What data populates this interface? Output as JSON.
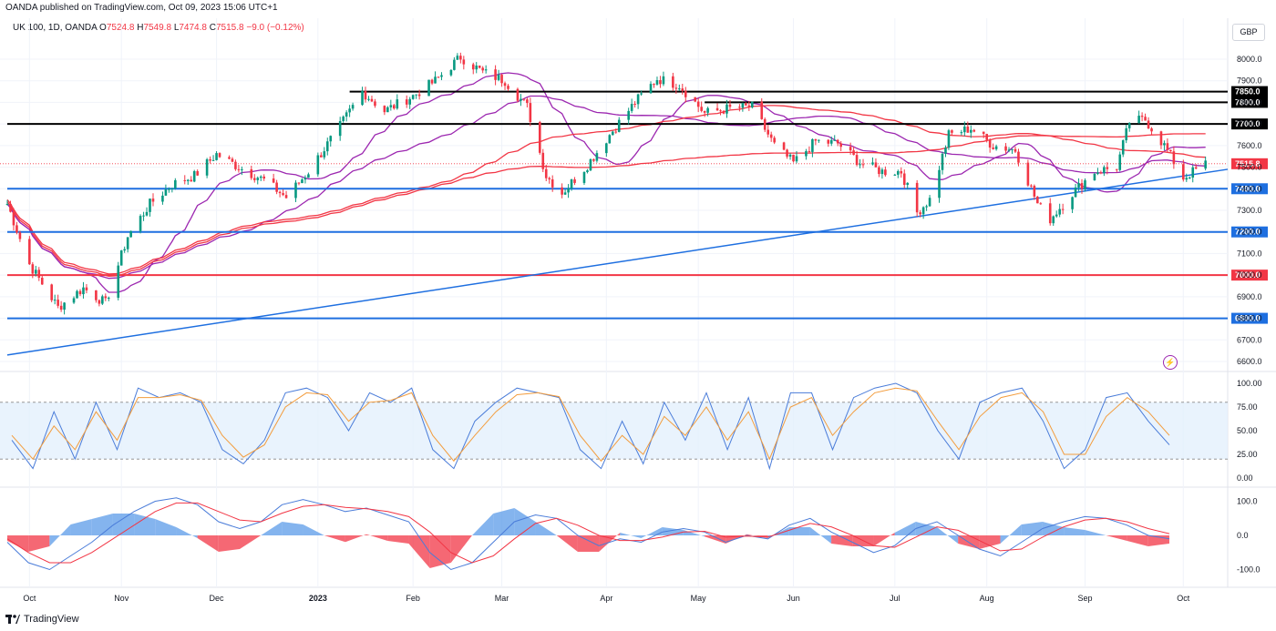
{
  "header": {
    "published": "OANDA published on TradingView.com, Oct 09, 2023 15:06 UTC+1",
    "symbol": "UK 100, 1D, OANDA",
    "o_label": "O",
    "o": "7524.8",
    "h_label": "H",
    "h": "7549.8",
    "l_label": "L",
    "l": "7474.8",
    "c_label": "C",
    "c": "7515.8",
    "change": "−9.0 (−0.12%)",
    "currency": "GBP"
  },
  "footer": {
    "brand": "TradingView"
  },
  "colors": {
    "up": "#089981",
    "down": "#f23645",
    "blue_level": "#1e6fe0",
    "red_level": "#f23645",
    "black_level": "#000000",
    "ma_purple": "#9c27b0",
    "ma_red": "#f23645",
    "stoch_k": "#4a7cd9",
    "stoch_d": "#f39c3c",
    "macd_pos": "#5b9be8",
    "macd_neg": "#f23645"
  },
  "chart_data": [
    {
      "type": "candlestick",
      "title": "UK 100, 1D, OANDA",
      "price_axis": {
        "ticks": [
          "8000.0",
          "7900.0",
          "7800.0",
          "7700.0",
          "7600.0",
          "7500.0",
          "7400.0",
          "7300.0",
          "7200.0",
          "7100.0",
          "7000.0",
          "6900.0",
          "6800.0",
          "6700.0",
          "6600.0"
        ],
        "range": [
          6550,
          8060
        ]
      },
      "time_axis": [
        "Oct",
        "Nov",
        "Dec",
        "2023",
        "Feb",
        "Mar",
        "Apr",
        "May",
        "Jun",
        "Jul",
        "Aug",
        "Sep",
        "Oct"
      ],
      "last_price": "7515.8",
      "horizontal_levels": [
        {
          "label": "7850.0",
          "value": 7850,
          "color": "black",
          "start": "2023-01-12"
        },
        {
          "label": "7800.0",
          "value": 7800,
          "color": "black",
          "start": "2023-05-04"
        },
        {
          "label": "7700.0",
          "value": 7700,
          "color": "black",
          "start": "2022-09-26"
        },
        {
          "label": "7400.0",
          "value": 7400,
          "color": "blue",
          "start": "2022-09-26"
        },
        {
          "label": "7200.0",
          "value": 7200,
          "color": "blue",
          "start": "2022-09-26"
        },
        {
          "label": "7000.0",
          "value": 7000,
          "color": "red",
          "start": "2022-09-26"
        },
        {
          "label": "6800.0",
          "value": 6800,
          "color": "blue",
          "start": "2022-09-26"
        }
      ],
      "trendline": {
        "from": {
          "date": "2022-09-26",
          "price": 6630
        },
        "to": {
          "date": "2023-10-16",
          "price": 7490
        }
      },
      "close_path": [
        [
          "2022-09-26",
          7330
        ],
        [
          "2022-10-03",
          7050
        ],
        [
          "2022-10-12",
          6850
        ],
        [
          "2022-10-20",
          6940
        ],
        [
          "2022-10-27",
          6870
        ],
        [
          "2022-11-03",
          7180
        ],
        [
          "2022-11-10",
          7330
        ],
        [
          "2022-11-17",
          7420
        ],
        [
          "2022-11-24",
          7460
        ],
        [
          "2022-12-01",
          7560
        ],
        [
          "2022-12-08",
          7500
        ],
        [
          "2022-12-16",
          7440
        ],
        [
          "2022-12-23",
          7360
        ],
        [
          "2022-12-30",
          7480
        ],
        [
          "2023-01-09",
          7690
        ],
        [
          "2023-01-16",
          7850
        ],
        [
          "2023-01-23",
          7760
        ],
        [
          "2023-02-01",
          7830
        ],
        [
          "2023-02-08",
          7900
        ],
        [
          "2023-02-16",
          8010
        ],
        [
          "2023-02-23",
          7940
        ],
        [
          "2023-03-02",
          7900
        ],
        [
          "2023-03-09",
          7780
        ],
        [
          "2023-03-15",
          7460
        ],
        [
          "2023-03-20",
          7380
        ],
        [
          "2023-03-28",
          7510
        ],
        [
          "2023-04-04",
          7650
        ],
        [
          "2023-04-12",
          7800
        ],
        [
          "2023-04-19",
          7910
        ],
        [
          "2023-04-26",
          7880
        ],
        [
          "2023-05-04",
          7750
        ],
        [
          "2023-05-11",
          7770
        ],
        [
          "2023-05-19",
          7780
        ],
        [
          "2023-05-26",
          7600
        ],
        [
          "2023-06-01",
          7520
        ],
        [
          "2023-06-08",
          7620
        ],
        [
          "2023-06-15",
          7610
        ],
        [
          "2023-06-22",
          7520
        ],
        [
          "2023-06-29",
          7480
        ],
        [
          "2023-07-05",
          7480
        ],
        [
          "2023-07-10",
          7290
        ],
        [
          "2023-07-14",
          7350
        ],
        [
          "2023-07-20",
          7650
        ],
        [
          "2023-07-27",
          7680
        ],
        [
          "2023-08-03",
          7600
        ],
        [
          "2023-08-10",
          7580
        ],
        [
          "2023-08-17",
          7330
        ],
        [
          "2023-08-21",
          7260
        ],
        [
          "2023-08-28",
          7380
        ],
        [
          "2023-09-04",
          7480
        ],
        [
          "2023-09-11",
          7500
        ],
        [
          "2023-09-15",
          7710
        ],
        [
          "2023-09-20",
          7720
        ],
        [
          "2023-09-26",
          7600
        ],
        [
          "2023-10-02",
          7450
        ],
        [
          "2023-10-09",
          7515.8
        ]
      ]
    },
    {
      "type": "line",
      "name": "stochastic",
      "ticks": [
        "100.00",
        "75.00",
        "50.00",
        "25.00",
        "0.00"
      ],
      "bands": [
        20,
        80
      ],
      "series": [
        {
          "name": "%K",
          "values": [
            40,
            10,
            70,
            20,
            80,
            30,
            95,
            85,
            90,
            80,
            30,
            15,
            40,
            90,
            95,
            85,
            50,
            90,
            80,
            95,
            30,
            10,
            60,
            80,
            95,
            90,
            85,
            30,
            10,
            60,
            15,
            80,
            40,
            90,
            30,
            85,
            10,
            90,
            90,
            30,
            85,
            95,
            100,
            90,
            50,
            20,
            80,
            90,
            95,
            60,
            10,
            30,
            85,
            90,
            60,
            35
          ]
        },
        {
          "name": "%D",
          "values": [
            45,
            20,
            55,
            30,
            70,
            40,
            85,
            85,
            88,
            82,
            45,
            22,
            35,
            75,
            90,
            88,
            60,
            80,
            82,
            90,
            45,
            18,
            45,
            70,
            88,
            90,
            86,
            45,
            18,
            45,
            25,
            65,
            45,
            75,
            40,
            70,
            20,
            75,
            85,
            45,
            70,
            90,
            95,
            92,
            60,
            30,
            65,
            85,
            90,
            70,
            25,
            25,
            65,
            85,
            70,
            45
          ]
        }
      ]
    },
    {
      "type": "area",
      "name": "macd",
      "ticks": [
        "100.0",
        "0.0",
        "-100.0"
      ],
      "series": [
        {
          "name": "macd",
          "values": [
            -20,
            -80,
            -100,
            -60,
            -20,
            30,
            70,
            100,
            110,
            90,
            40,
            20,
            40,
            90,
            105,
            90,
            70,
            80,
            60,
            40,
            -50,
            -100,
            -80,
            -20,
            40,
            60,
            50,
            0,
            -30,
            -10,
            -20,
            10,
            20,
            10,
            -20,
            0,
            -10,
            30,
            50,
            10,
            -20,
            -50,
            -30,
            20,
            40,
            0,
            -40,
            -60,
            -20,
            20,
            40,
            55,
            50,
            30,
            0,
            -10
          ]
        },
        {
          "name": "signal",
          "values": [
            -10,
            -50,
            -80,
            -80,
            -50,
            -10,
            30,
            70,
            95,
            95,
            70,
            45,
            40,
            65,
            85,
            90,
            82,
            78,
            70,
            55,
            10,
            -50,
            -80,
            -60,
            -10,
            35,
            50,
            30,
            0,
            -15,
            -15,
            -5,
            10,
            12,
            -5,
            -2,
            -5,
            15,
            35,
            25,
            0,
            -30,
            -35,
            -5,
            25,
            15,
            -15,
            -45,
            -40,
            -5,
            25,
            45,
            50,
            40,
            20,
            5
          ]
        }
      ]
    }
  ]
}
